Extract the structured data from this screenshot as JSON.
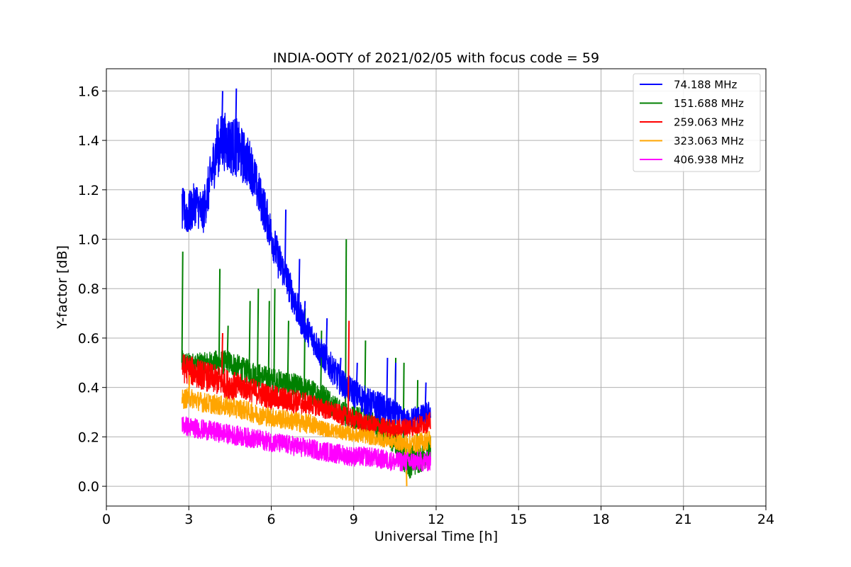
{
  "chart_data": {
    "type": "line",
    "title": "INDIA-OOTY of 2021/02/05 with focus code = 59",
    "xlabel": "Universal Time [h]",
    "ylabel": "Y-factor [dB]",
    "xlim": [
      0,
      24
    ],
    "ylim": [
      -0.08,
      1.69
    ],
    "xticks": [
      0,
      3,
      6,
      9,
      12,
      15,
      18,
      21,
      24
    ],
    "yticks": [
      0.0,
      0.2,
      0.4,
      0.6,
      0.8,
      1.0,
      1.2,
      1.4,
      1.6
    ],
    "ytick_labels": [
      "0.0",
      "0.2",
      "0.4",
      "0.6",
      "0.8",
      "1.0",
      "1.2",
      "1.4",
      "1.6"
    ],
    "grid": true,
    "legend_position": "top-right",
    "series": [
      {
        "name": " 74.188 MHz",
        "color": "#0000ff",
        "x": [
          2.75,
          3.0,
          3.25,
          3.5,
          3.75,
          4.0,
          4.25,
          4.5,
          4.75,
          5.0,
          5.25,
          5.5,
          5.75,
          6.0,
          6.25,
          6.5,
          6.75,
          7.0,
          7.25,
          7.5,
          7.75,
          8.0,
          8.25,
          8.5,
          8.75,
          9.0,
          9.25,
          9.5,
          9.75,
          10.0,
          10.25,
          10.5,
          10.75,
          11.0,
          11.25,
          11.5,
          11.8
        ],
        "values": [
          1.12,
          1.1,
          1.15,
          1.1,
          1.22,
          1.36,
          1.4,
          1.38,
          1.37,
          1.33,
          1.3,
          1.2,
          1.12,
          1.02,
          0.92,
          0.86,
          0.78,
          0.7,
          0.64,
          0.6,
          0.55,
          0.51,
          0.47,
          0.43,
          0.4,
          0.38,
          0.36,
          0.34,
          0.33,
          0.32,
          0.3,
          0.3,
          0.27,
          0.26,
          0.28,
          0.28,
          0.3
        ],
        "amplitude": [
          0.09,
          0.09,
          0.09,
          0.09,
          0.1,
          0.12,
          0.12,
          0.12,
          0.12,
          0.11,
          0.1,
          0.09,
          0.09,
          0.08,
          0.08,
          0.07,
          0.07,
          0.07,
          0.06,
          0.06,
          0.06,
          0.06,
          0.06,
          0.06,
          0.05,
          0.06,
          0.06,
          0.06,
          0.06,
          0.06,
          0.06,
          0.05,
          0.05,
          0.05,
          0.05,
          0.05,
          0.05
        ],
        "spikes": [
          [
            4.2,
            1.6
          ],
          [
            4.7,
            1.61
          ],
          [
            6.5,
            1.12
          ],
          [
            7.0,
            0.92
          ],
          [
            7.2,
            0.75
          ],
          [
            8.0,
            0.68
          ],
          [
            8.5,
            0.52
          ],
          [
            9.1,
            0.5
          ],
          [
            10.2,
            0.52
          ],
          [
            10.5,
            0.5
          ],
          [
            11.6,
            0.42
          ]
        ]
      },
      {
        "name": "151.688 MHz",
        "color": "#008000",
        "x": [
          2.75,
          3.0,
          3.5,
          4.0,
          4.5,
          5.0,
          5.5,
          6.0,
          6.5,
          7.0,
          7.5,
          8.0,
          8.5,
          9.0,
          9.5,
          10.0,
          10.5,
          11.0,
          11.5,
          11.8
        ],
        "values": [
          0.5,
          0.5,
          0.5,
          0.5,
          0.5,
          0.47,
          0.45,
          0.43,
          0.42,
          0.4,
          0.38,
          0.36,
          0.3,
          0.28,
          0.26,
          0.24,
          0.18,
          0.1,
          0.12,
          0.15
        ],
        "amplitude": [
          0.05,
          0.04,
          0.04,
          0.05,
          0.05,
          0.05,
          0.05,
          0.05,
          0.05,
          0.05,
          0.05,
          0.05,
          0.05,
          0.05,
          0.05,
          0.05,
          0.06,
          0.07,
          0.06,
          0.06
        ],
        "spikes": [
          [
            2.75,
            0.95
          ],
          [
            4.1,
            0.88
          ],
          [
            4.4,
            0.65
          ],
          [
            5.2,
            0.75
          ],
          [
            5.5,
            0.8
          ],
          [
            5.9,
            0.75
          ],
          [
            6.1,
            0.8
          ],
          [
            6.6,
            0.67
          ],
          [
            7.2,
            0.72
          ],
          [
            7.8,
            0.63
          ],
          [
            8.7,
            1.0
          ],
          [
            9.4,
            0.59
          ],
          [
            10.5,
            0.52
          ],
          [
            10.8,
            0.5
          ],
          [
            11.3,
            0.43
          ]
        ]
      },
      {
        "name": "259.063 MHz",
        "color": "#ff0000",
        "x": [
          2.75,
          3.0,
          3.5,
          4.0,
          4.5,
          5.0,
          5.5,
          6.0,
          6.5,
          7.0,
          7.5,
          8.0,
          8.5,
          9.0,
          9.5,
          10.0,
          10.5,
          11.0,
          11.5,
          11.8
        ],
        "values": [
          0.48,
          0.47,
          0.45,
          0.43,
          0.41,
          0.4,
          0.38,
          0.36,
          0.35,
          0.34,
          0.33,
          0.31,
          0.29,
          0.27,
          0.25,
          0.24,
          0.23,
          0.24,
          0.25,
          0.26
        ],
        "amplitude": [
          0.06,
          0.06,
          0.06,
          0.06,
          0.06,
          0.05,
          0.05,
          0.05,
          0.05,
          0.05,
          0.04,
          0.04,
          0.04,
          0.04,
          0.04,
          0.04,
          0.04,
          0.04,
          0.04,
          0.04
        ],
        "spikes": [
          [
            4.2,
            0.62
          ],
          [
            8.8,
            0.67
          ]
        ]
      },
      {
        "name": "323.063 MHz",
        "color": "#ffa500",
        "x": [
          2.75,
          3.0,
          3.5,
          4.0,
          4.5,
          5.0,
          5.5,
          6.0,
          6.5,
          7.0,
          7.5,
          8.0,
          8.5,
          9.0,
          9.5,
          10.0,
          10.5,
          11.0,
          11.5,
          11.8
        ],
        "values": [
          0.35,
          0.36,
          0.34,
          0.33,
          0.32,
          0.31,
          0.29,
          0.28,
          0.27,
          0.26,
          0.25,
          0.23,
          0.22,
          0.21,
          0.2,
          0.19,
          0.18,
          0.17,
          0.18,
          0.19
        ],
        "amplitude": [
          0.04,
          0.04,
          0.04,
          0.04,
          0.04,
          0.04,
          0.04,
          0.04,
          0.04,
          0.04,
          0.04,
          0.03,
          0.03,
          0.03,
          0.03,
          0.03,
          0.03,
          0.04,
          0.04,
          0.04
        ],
        "spikes": [
          [
            3.0,
            0.45
          ],
          [
            10.9,
            0.0
          ]
        ]
      },
      {
        "name": "406.938 MHz",
        "color": "#ff00ff",
        "x": [
          2.75,
          3.0,
          3.5,
          4.0,
          4.5,
          5.0,
          5.5,
          6.0,
          6.5,
          7.0,
          7.5,
          8.0,
          8.5,
          9.0,
          9.5,
          10.0,
          10.5,
          11.0,
          11.5,
          11.8
        ],
        "values": [
          0.25,
          0.24,
          0.23,
          0.22,
          0.21,
          0.2,
          0.19,
          0.18,
          0.17,
          0.16,
          0.15,
          0.14,
          0.13,
          0.12,
          0.12,
          0.11,
          0.1,
          0.1,
          0.1,
          0.1
        ],
        "amplitude": [
          0.04,
          0.04,
          0.04,
          0.04,
          0.04,
          0.04,
          0.04,
          0.04,
          0.04,
          0.04,
          0.04,
          0.04,
          0.04,
          0.04,
          0.04,
          0.04,
          0.04,
          0.04,
          0.04,
          0.04
        ],
        "spikes": []
      }
    ]
  }
}
